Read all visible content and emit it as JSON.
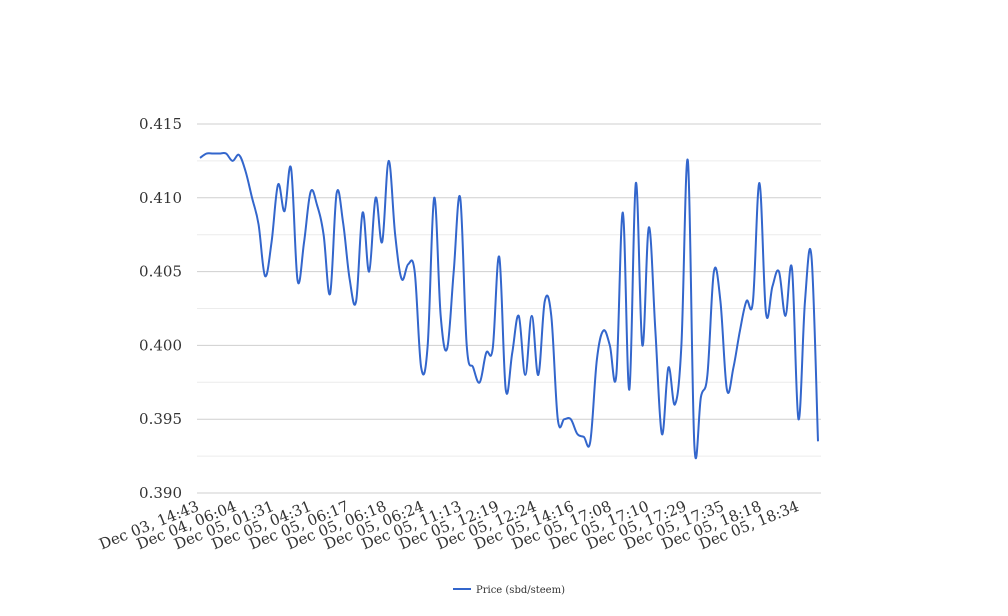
{
  "chart_data": {
    "type": "line",
    "title": "",
    "xlabel": "",
    "ylabel": "",
    "ylim": [
      0.39,
      0.415
    ],
    "yticks": [
      "0.390",
      "0.395",
      "0.400",
      "0.405",
      "0.410",
      "0.415"
    ],
    "grid": true,
    "legend_position": "bottom",
    "line_color": "#3366cc",
    "xtick_labels": [
      "Dec 03, 14:43",
      "Dec 04, 06:04",
      "Dec 05, 01:31",
      "Dec 05, 04:31",
      "Dec 05, 06:17",
      "Dec 05, 06:18",
      "Dec 05, 06:24",
      "Dec 05, 11:13",
      "Dec 05, 12:19",
      "Dec 05, 12:24",
      "Dec 05, 14:16",
      "Dec 05, 17:08",
      "Dec 05, 17:10",
      "Dec 05, 17:29",
      "Dec 05, 17:35",
      "Dec 05, 18:18",
      "Dec 05, 18:34"
    ],
    "series": [
      {
        "name": "Price (sbd/steem)",
        "values": [
          0.4127,
          0.413,
          0.413,
          0.413,
          0.413,
          0.4125,
          0.4129,
          0.4118,
          0.41,
          0.4082,
          0.4047,
          0.407,
          0.4109,
          0.4091,
          0.412,
          0.4044,
          0.407,
          0.4104,
          0.4095,
          0.4075,
          0.4035,
          0.4103,
          0.4083,
          0.4045,
          0.403,
          0.409,
          0.405,
          0.41,
          0.407,
          0.4125,
          0.4075,
          0.4045,
          0.4055,
          0.405,
          0.3985,
          0.4,
          0.41,
          0.402,
          0.3998,
          0.405,
          0.41,
          0.4,
          0.3985,
          0.3975,
          0.3995,
          0.3998,
          0.406,
          0.397,
          0.3995,
          0.402,
          0.398,
          0.402,
          0.398,
          0.403,
          0.402,
          0.395,
          0.395,
          0.395,
          0.394,
          0.3938,
          0.3935,
          0.399,
          0.401,
          0.4,
          0.398,
          0.409,
          0.397,
          0.411,
          0.4,
          0.408,
          0.401,
          0.394,
          0.3985,
          0.396,
          0.4,
          0.4125,
          0.3932,
          0.3965,
          0.398,
          0.405,
          0.403,
          0.397,
          0.3985,
          0.401,
          0.403,
          0.403,
          0.411,
          0.4022,
          0.404,
          0.405,
          0.402,
          0.4052,
          0.395,
          0.403,
          0.406,
          0.3935
        ]
      }
    ]
  }
}
